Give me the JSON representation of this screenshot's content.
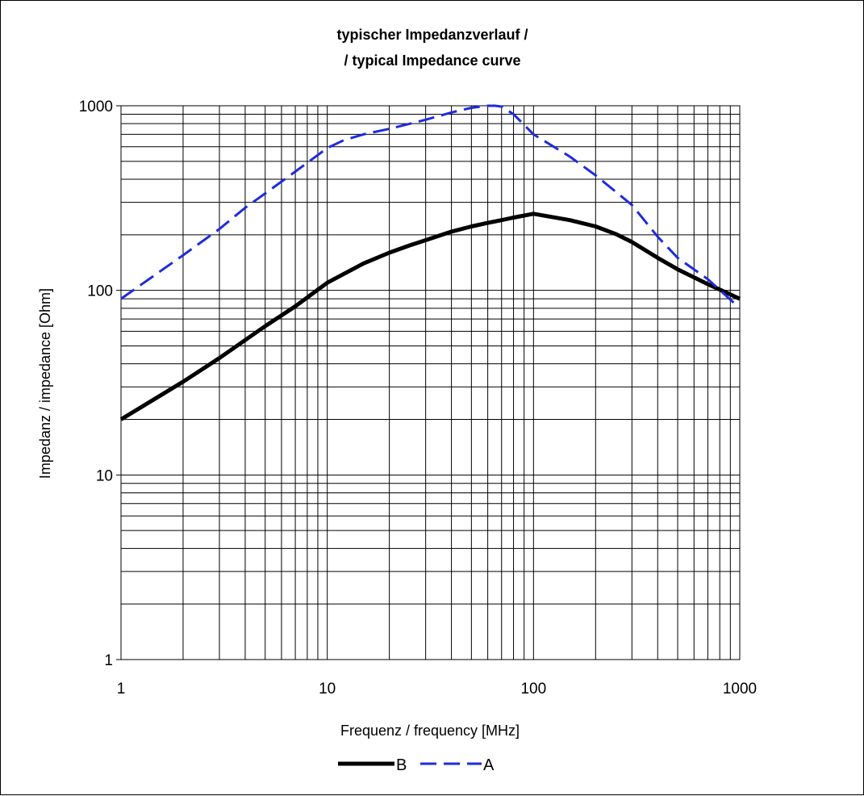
{
  "chart_data": {
    "type": "line",
    "title": [
      "typischer Impedanzverlauf /",
      "/ typical Impedance curve"
    ],
    "xlabel": "Frequenz / frequency [MHz]",
    "ylabel": "Impedanz / impedance [Ohm]",
    "xscale": "log",
    "yscale": "log",
    "xlim": [
      1,
      1000
    ],
    "ylim": [
      1,
      1000
    ],
    "xticks": [
      "1",
      "10",
      "100",
      "1000"
    ],
    "yticks": [
      "1",
      "10",
      "100",
      "1000"
    ],
    "grid": true,
    "legend_position": "bottom",
    "series": [
      {
        "name": "B",
        "color": "#000000",
        "style": "solid",
        "x": [
          1,
          2,
          3,
          5,
          7,
          10,
          15,
          20,
          25,
          30,
          40,
          50,
          60,
          70,
          80,
          100,
          150,
          200,
          250,
          300,
          400,
          500,
          700,
          1000
        ],
        "y": [
          20,
          32,
          43,
          64,
          82,
          110,
          140,
          160,
          175,
          187,
          208,
          222,
          232,
          240,
          248,
          260,
          240,
          222,
          202,
          183,
          150,
          130,
          108,
          90
        ]
      },
      {
        "name": "A",
        "color": "#1f2bdb",
        "style": "dashed",
        "x": [
          1,
          2,
          3,
          4,
          5,
          7,
          10,
          12,
          15,
          20,
          30,
          40,
          50,
          60,
          65,
          70,
          80,
          100,
          150,
          200,
          300,
          400,
          500,
          700,
          1000
        ],
        "y": [
          90,
          155,
          215,
          280,
          335,
          440,
          590,
          650,
          700,
          750,
          840,
          920,
          975,
          1000,
          1000,
          990,
          900,
          700,
          530,
          420,
          290,
          195,
          150,
          115,
          80
        ]
      }
    ]
  }
}
